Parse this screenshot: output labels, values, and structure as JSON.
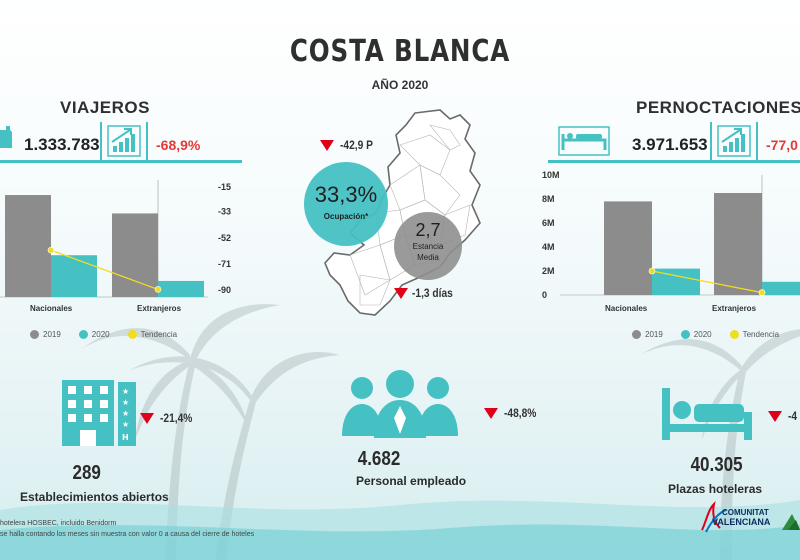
{
  "header": {
    "title": "COSTA BLANCA",
    "subtitle": "AÑO 2020"
  },
  "colors": {
    "teal": "#45c1c4",
    "gray": "#8c8c8c",
    "yellow": "#f2dc1e",
    "red": "#e1001a"
  },
  "viajeros": {
    "title": "VIAJEROS",
    "total": "1.333.783",
    "change": "-68,9%",
    "icon": "hotel-bell-icon",
    "trend_icon": "bar-growth-icon"
  },
  "pernoctaciones": {
    "title": "PERNOCTACIONES",
    "total": "3.971.653",
    "change": "-77,0",
    "icon": "bed-icon",
    "trend_icon": "bar-growth-icon"
  },
  "center": {
    "ocupacion_value": "33,3%",
    "ocupacion_label": "Ocupación*",
    "ocupacion_change": "-42,9 P",
    "estancia_value": "2,7",
    "estancia_label_1": "Estancia",
    "estancia_label_2": "Media",
    "estancia_change": "-1,3 días"
  },
  "kpis": {
    "establecimientos": {
      "value": "289",
      "label": "Establecimientos abiertos",
      "change": "-21,4%"
    },
    "personal": {
      "value": "4.682",
      "label": "Personal empleado",
      "change": "-48,8%"
    },
    "plazas": {
      "value": "40.305",
      "label": "Plazas hoteleras",
      "change": "-4"
    }
  },
  "footnote": {
    "line1": "hotelera HOSBEC, incluido Benidorm",
    "line2": "se halla contando los meses sin muestra  con valor 0 a causa del cierre de hoteles"
  },
  "logo": {
    "line1": "COMUNITAT",
    "line2": "VALENCIANA"
  },
  "chart_data": [
    {
      "type": "bar",
      "categories": [
        "Nacionales",
        "Extranjeros"
      ],
      "series": [
        {
          "name": "2019",
          "values": [
            3050000,
            2500000
          ]
        },
        {
          "name": "2020",
          "values": [
            1250000,
            480000
          ]
        },
        {
          "name": "Tendencia",
          "values": [
            -61.0,
            -89.5
          ]
        }
      ],
      "y2_ticks": [
        "-15",
        "-33",
        "-52",
        "-71",
        "-90"
      ],
      "y2lim": [
        -95,
        -10
      ],
      "ylim": [
        0,
        3500000
      ],
      "legend": "bottom"
    },
    {
      "type": "bar",
      "categories": [
        "Nacionales",
        "Extranjeros"
      ],
      "series": [
        {
          "name": "2019",
          "values": [
            7800000,
            8500000
          ]
        },
        {
          "name": "2020",
          "values": [
            2200000,
            1100000
          ]
        },
        {
          "name": "Tendencia",
          "values": [
            2000000,
            200000
          ]
        }
      ],
      "y_ticks": [
        "10M",
        "8M",
        "6M",
        "4M",
        "2M",
        "0"
      ],
      "ylim": [
        0,
        10000000
      ],
      "legend": "bottom"
    }
  ]
}
